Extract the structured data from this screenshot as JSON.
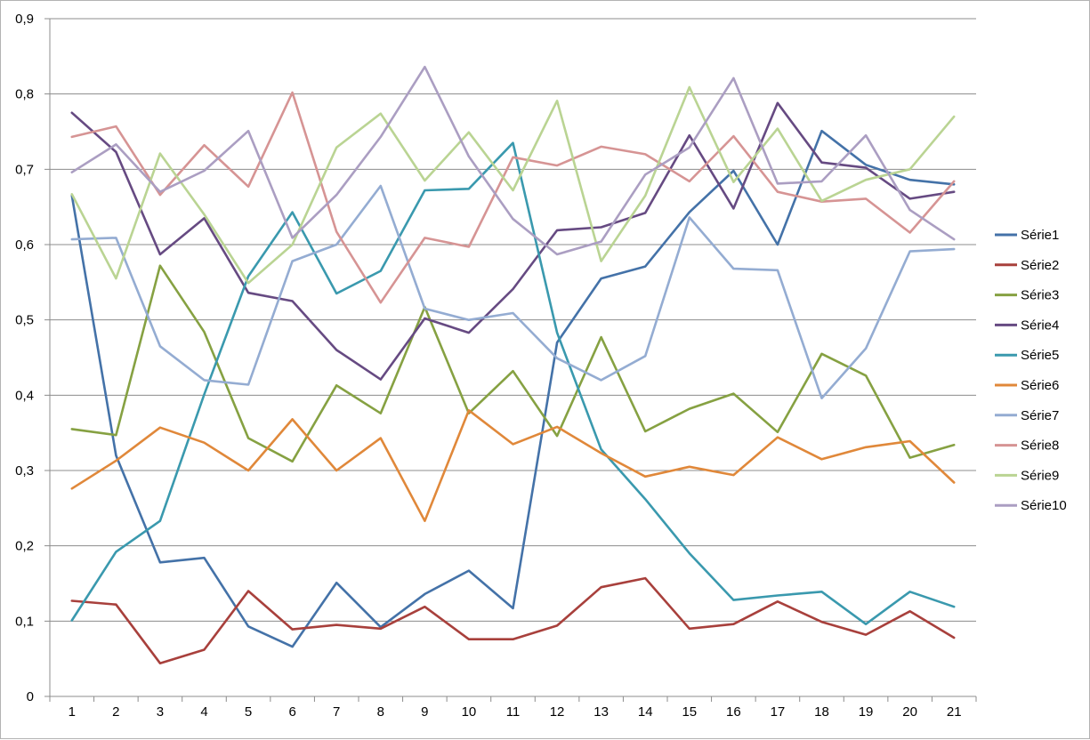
{
  "chart_data": {
    "type": "line",
    "title": "",
    "xlabel": "",
    "ylabel": "",
    "ylim": [
      0,
      0.9
    ],
    "y_ticks": [
      "0",
      "0,1",
      "0,2",
      "0,3",
      "0,4",
      "0,5",
      "0,6",
      "0,7",
      "0,8",
      "0,9"
    ],
    "categories": [
      "1",
      "2",
      "3",
      "4",
      "5",
      "6",
      "7",
      "8",
      "9",
      "10",
      "11",
      "12",
      "13",
      "14",
      "15",
      "16",
      "17",
      "18",
      "19",
      "20",
      "21"
    ],
    "grid": true,
    "legend_position": "right",
    "series": [
      {
        "name": "Série1",
        "color": "#4472a8",
        "values": [
          0.665,
          0.32,
          0.178,
          0.184,
          0.093,
          0.066,
          0.151,
          0.092,
          0.136,
          0.167,
          0.117,
          0.47,
          0.555,
          0.571,
          0.643,
          0.698,
          0.6,
          0.751,
          0.706,
          0.686,
          0.68
        ]
      },
      {
        "name": "Série2",
        "color": "#a8403c",
        "values": [
          0.127,
          0.122,
          0.044,
          0.062,
          0.14,
          0.089,
          0.095,
          0.09,
          0.119,
          0.076,
          0.076,
          0.094,
          0.145,
          0.157,
          0.09,
          0.096,
          0.126,
          0.099,
          0.082,
          0.113,
          0.078
        ]
      },
      {
        "name": "Série3",
        "color": "#86a142",
        "values": [
          0.355,
          0.347,
          0.572,
          0.484,
          0.343,
          0.312,
          0.413,
          0.376,
          0.517,
          0.376,
          0.432,
          0.346,
          0.477,
          0.352,
          0.382,
          0.402,
          0.351,
          0.455,
          0.426,
          0.317,
          0.334
        ]
      },
      {
        "name": "Série4",
        "color": "#664a82",
        "values": [
          0.775,
          0.723,
          0.587,
          0.635,
          0.536,
          0.525,
          0.46,
          0.421,
          0.502,
          0.483,
          0.541,
          0.619,
          0.623,
          0.642,
          0.745,
          0.648,
          0.788,
          0.709,
          0.702,
          0.661,
          0.67
        ]
      },
      {
        "name": "Série5",
        "color": "#3a99ae",
        "values": [
          0.101,
          0.192,
          0.233,
          0.401,
          0.558,
          0.643,
          0.535,
          0.565,
          0.672,
          0.674,
          0.735,
          0.483,
          0.328,
          0.262,
          0.19,
          0.128,
          0.134,
          0.139,
          0.096,
          0.139,
          0.119
        ]
      },
      {
        "name": "Série6",
        "color": "#e0883a",
        "values": [
          0.276,
          0.313,
          0.357,
          0.337,
          0.3,
          0.368,
          0.3,
          0.343,
          0.233,
          0.38,
          0.335,
          0.358,
          0.323,
          0.292,
          0.305,
          0.294,
          0.344,
          0.315,
          0.331,
          0.339,
          0.284
        ]
      },
      {
        "name": "Série7",
        "color": "#94acd2",
        "values": [
          0.607,
          0.609,
          0.465,
          0.42,
          0.414,
          0.578,
          0.6,
          0.678,
          0.515,
          0.5,
          0.509,
          0.449,
          0.42,
          0.452,
          0.636,
          0.568,
          0.566,
          0.396,
          0.462,
          0.591,
          0.594
        ]
      },
      {
        "name": "Série8",
        "color": "#d69494",
        "values": [
          0.743,
          0.757,
          0.666,
          0.732,
          0.677,
          0.802,
          0.617,
          0.523,
          0.609,
          0.597,
          0.716,
          0.705,
          0.73,
          0.72,
          0.684,
          0.744,
          0.67,
          0.657,
          0.661,
          0.616,
          0.684
        ]
      },
      {
        "name": "Série9",
        "color": "#bad493",
        "values": [
          0.667,
          0.555,
          0.721,
          0.64,
          0.549,
          0.6,
          0.729,
          0.774,
          0.685,
          0.749,
          0.672,
          0.791,
          0.578,
          0.665,
          0.809,
          0.683,
          0.754,
          0.658,
          0.686,
          0.7,
          0.77
        ]
      },
      {
        "name": "Série10",
        "color": "#ab9ec2",
        "values": [
          0.696,
          0.733,
          0.67,
          0.698,
          0.751,
          0.609,
          0.666,
          0.743,
          0.836,
          0.717,
          0.634,
          0.587,
          0.604,
          0.693,
          0.729,
          0.821,
          0.681,
          0.684,
          0.745,
          0.646,
          0.607
        ]
      }
    ]
  }
}
